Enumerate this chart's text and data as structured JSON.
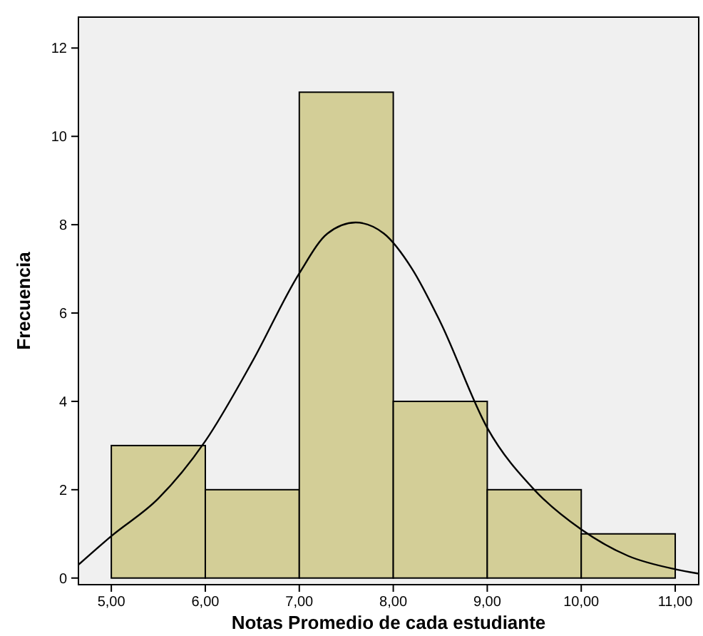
{
  "chart_data": {
    "type": "histogram",
    "xlabel": "Notas Promedio de cada estudiante",
    "ylabel": "Frecuencia",
    "bins": [
      5,
      6,
      7,
      8,
      9,
      10,
      11
    ],
    "values": [
      3,
      2,
      11,
      4,
      2,
      1
    ],
    "color": "#d3ce97",
    "xlim": [
      4.65,
      11.25
    ],
    "xticks": [
      {
        "value": 5,
        "label": "5,00"
      },
      {
        "value": 6,
        "label": "6,00"
      },
      {
        "value": 7,
        "label": "7,00"
      },
      {
        "value": 8,
        "label": "8,00"
      },
      {
        "value": 9,
        "label": "9,00"
      },
      {
        "value": 10,
        "label": "10,00"
      },
      {
        "value": 11,
        "label": "11,00"
      }
    ],
    "ylim": [
      -0.15,
      12.7
    ],
    "yticks": [
      0,
      2,
      4,
      6,
      8,
      10,
      12
    ],
    "series": [
      {
        "type": "line",
        "color": "#000000",
        "x": [
          4.65,
          5,
          5.5,
          6,
          6.5,
          7,
          7.3,
          7.6,
          7.9,
          8.2,
          8.5,
          9,
          9.5,
          10,
          10.5,
          11,
          11.25
        ],
        "values": [
          0.3,
          0.95,
          1.8,
          3.1,
          4.9,
          6.9,
          7.8,
          8.05,
          7.8,
          7.0,
          5.8,
          3.4,
          2.0,
          1.1,
          0.5,
          0.2,
          0.1
        ]
      }
    ]
  }
}
